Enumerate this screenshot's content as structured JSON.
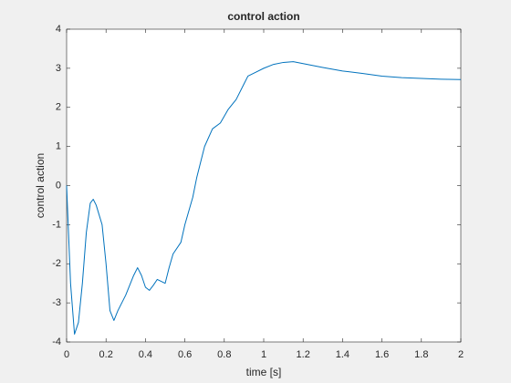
{
  "chart_data": {
    "type": "line",
    "title": "control action",
    "x_label": "time [s]",
    "y_label": "control action",
    "x": [
      0,
      0.02,
      0.04,
      0.06,
      0.08,
      0.1,
      0.12,
      0.135,
      0.15,
      0.18,
      0.2,
      0.22,
      0.24,
      0.26,
      0.3,
      0.34,
      0.36,
      0.38,
      0.4,
      0.42,
      0.44,
      0.46,
      0.48,
      0.5,
      0.52,
      0.54,
      0.58,
      0.6,
      0.64,
      0.66,
      0.7,
      0.74,
      0.78,
      0.82,
      0.86,
      0.9,
      0.92,
      0.96,
      1.0,
      1.05,
      1.1,
      1.15,
      1.2,
      1.3,
      1.4,
      1.5,
      1.6,
      1.7,
      1.8,
      1.9,
      2.0
    ],
    "series": [
      {
        "name": "control action",
        "color": "#0072bd",
        "values": [
          0,
          -2.5,
          -3.8,
          -3.5,
          -2.5,
          -1.2,
          -0.45,
          -0.35,
          -0.5,
          -1.0,
          -2.0,
          -3.2,
          -3.45,
          -3.2,
          -2.8,
          -2.3,
          -2.1,
          -2.3,
          -2.6,
          -2.68,
          -2.55,
          -2.4,
          -2.45,
          -2.5,
          -2.1,
          -1.75,
          -1.45,
          -1.0,
          -0.3,
          0.2,
          1.0,
          1.45,
          1.6,
          1.95,
          2.2,
          2.6,
          2.8,
          2.9,
          3.0,
          3.1,
          3.15,
          3.17,
          3.12,
          3.02,
          2.93,
          2.87,
          2.8,
          2.76,
          2.74,
          2.72,
          2.71
        ]
      }
    ],
    "xlim": [
      0,
      2
    ],
    "xticks": [
      0,
      0.2,
      0.4,
      0.6,
      0.8,
      1,
      1.2,
      1.4,
      1.6,
      1.8,
      2
    ],
    "ylim": [
      -4,
      4
    ],
    "yticks": [
      -4,
      -3,
      -2,
      -1,
      0,
      1,
      2,
      3,
      4
    ],
    "grid": false
  }
}
